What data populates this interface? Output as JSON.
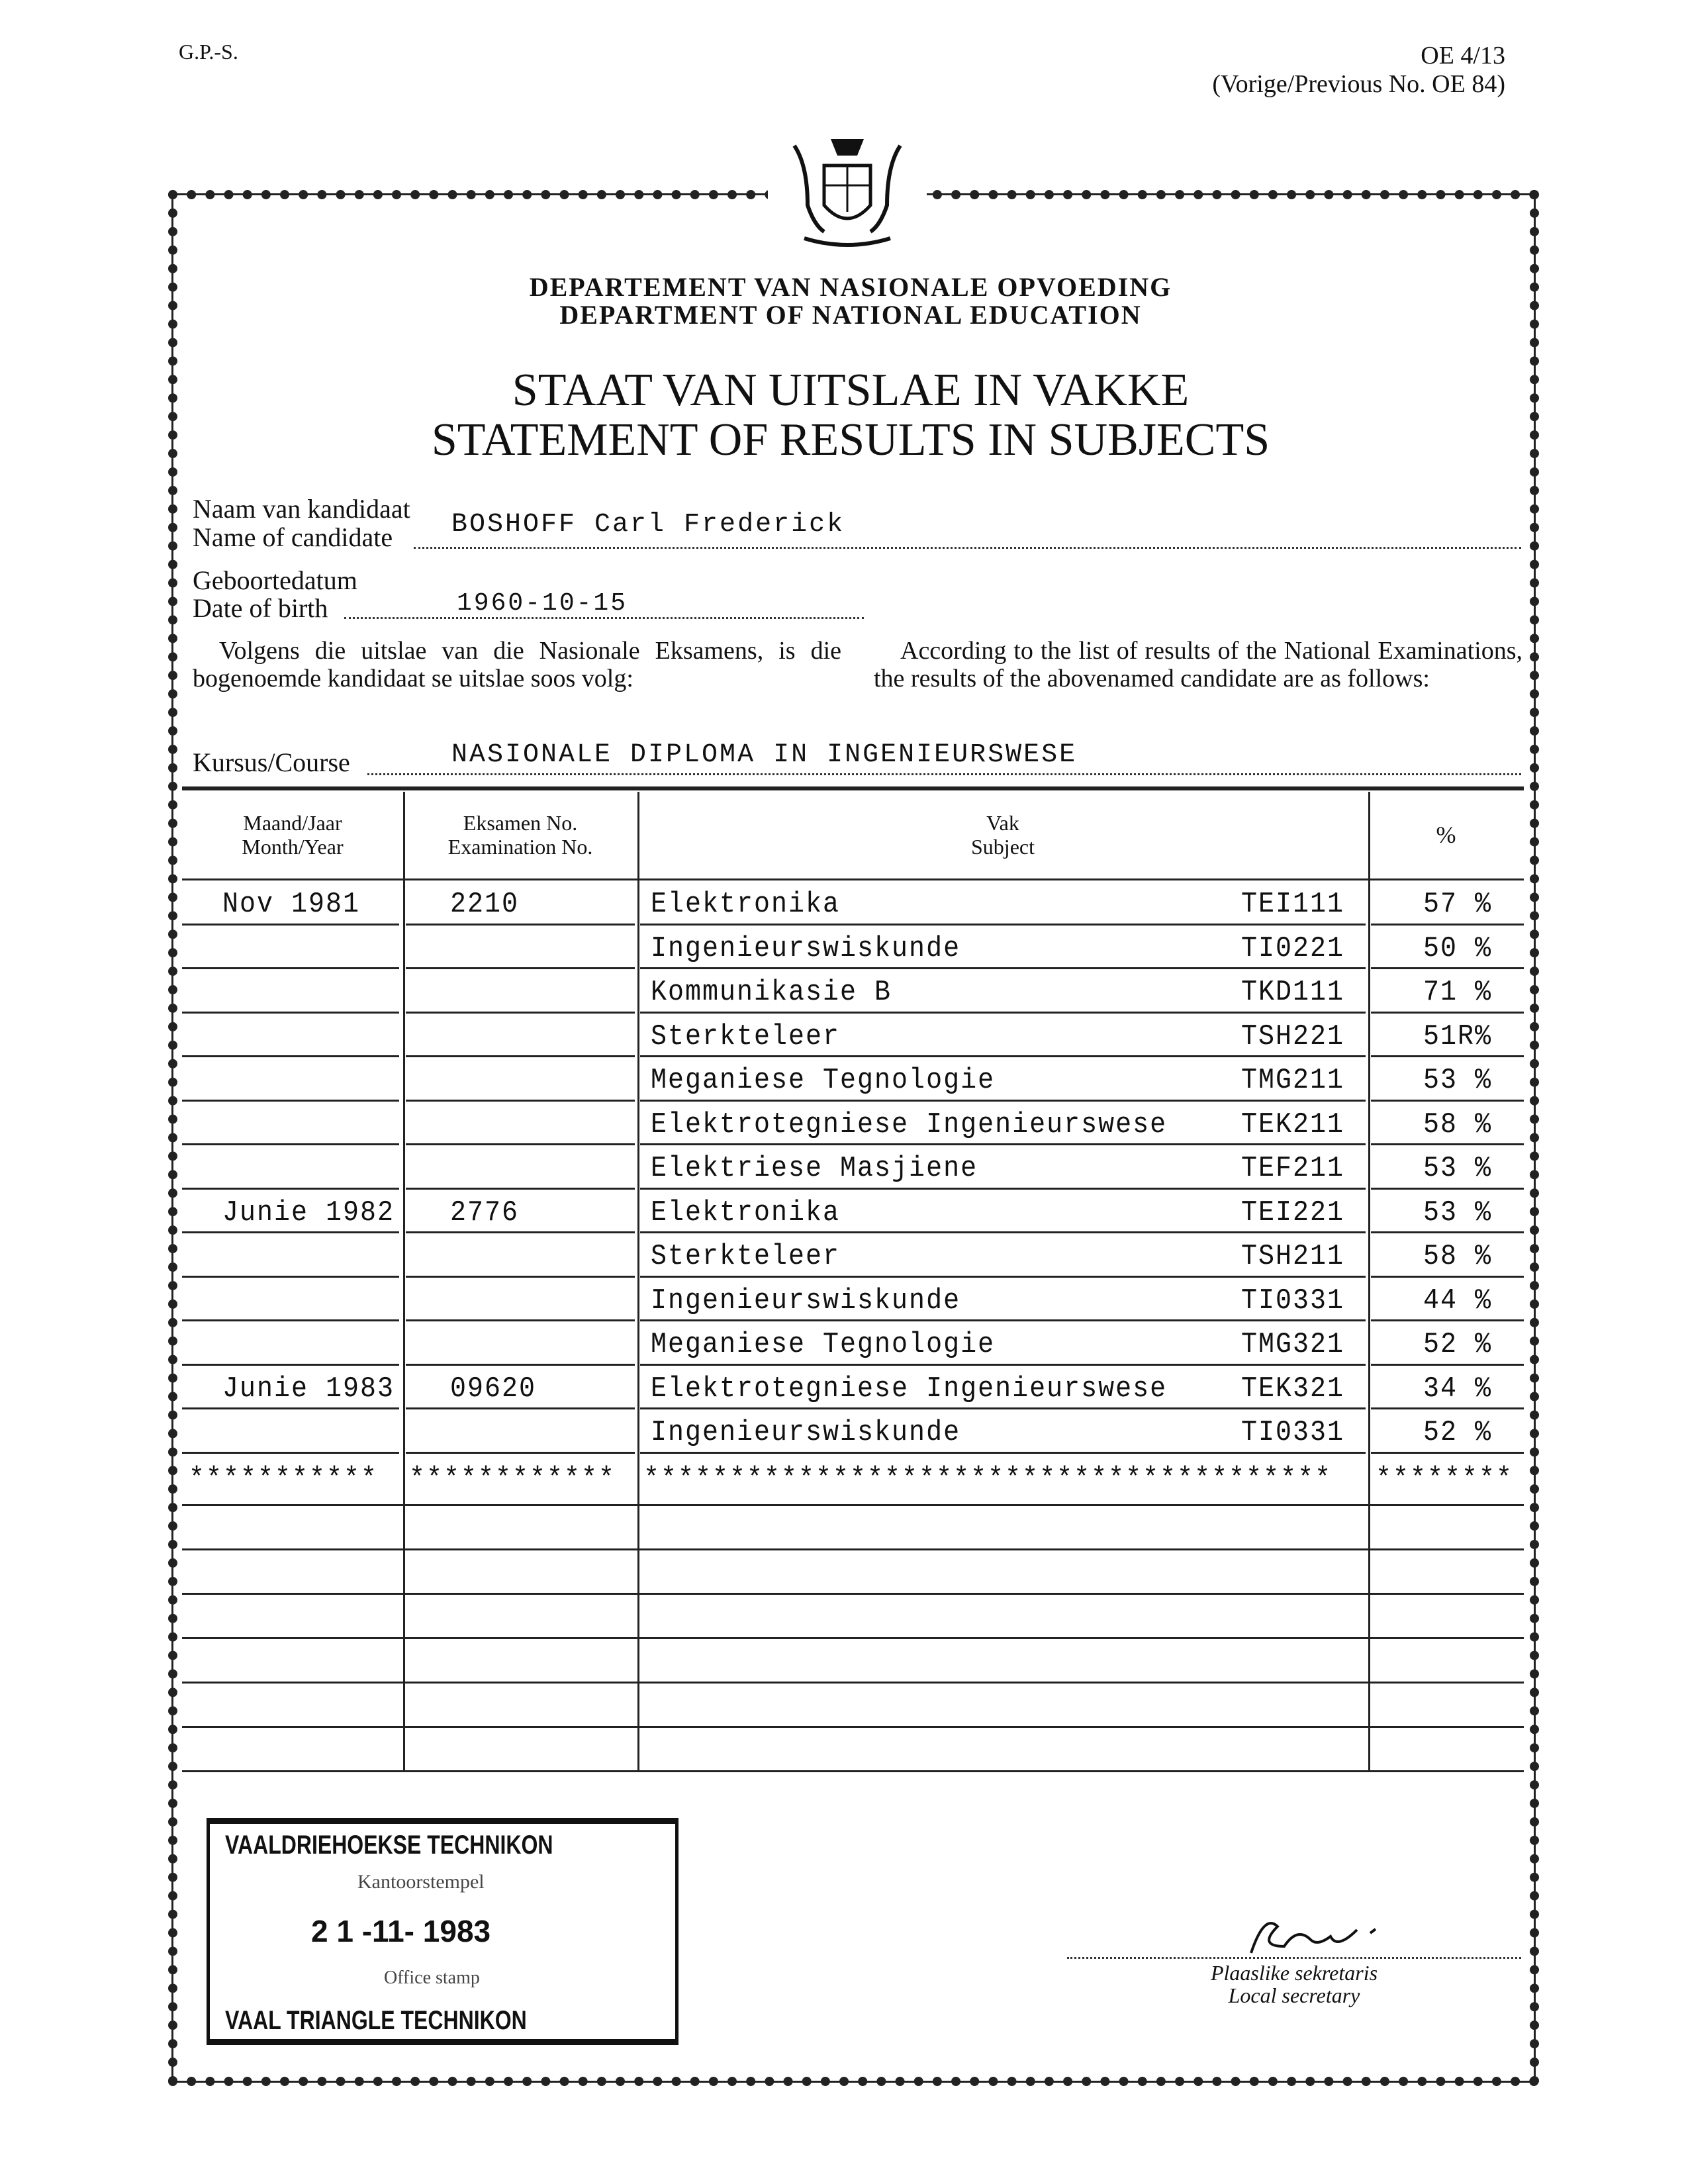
{
  "form": {
    "code_left": "G.P.-S.",
    "code_right": "OE 4/13",
    "previous": "(Vorige/Previous No. OE 84)"
  },
  "header": {
    "dept_af": "DEPARTEMENT VAN NASIONALE OPVOEDING",
    "dept_en": "DEPARTMENT OF NATIONAL EDUCATION",
    "title_af": "STAAT VAN UITSLAE IN VAKKE",
    "title_en": "STATEMENT OF RESULTS IN SUBJECTS"
  },
  "candidate": {
    "name_label_af": "Naam van kandidaat",
    "name_label_en": "Name of candidate",
    "name": "BOSHOFF  Carl Frederick",
    "dob_label_af": "Geboortedatum",
    "dob_label_en": "Date of birth",
    "dob": "1960-10-15"
  },
  "intro": {
    "af": "Volgens die uitslae van die Nasionale Eksamens, is die bogenoemde kandidaat se uitslae soos volg:",
    "en": "According to the list of results of the National Examinations, the results of the abovenamed candidate are as follows:"
  },
  "course": {
    "label": "Kursus/Course",
    "value": "NASIONALE DIPLOMA IN INGENIEURSWESE"
  },
  "table": {
    "headers": {
      "month_af": "Maand/Jaar",
      "month_en": "Month/Year",
      "exam_af": "Eksamen No.",
      "exam_en": "Examination No.",
      "subject_af": "Vak",
      "subject_en": "Subject",
      "percent": "%"
    },
    "rows": [
      {
        "month": "Nov 1981",
        "exam": "2210",
        "subject": "Elektronika",
        "code": "TEI111",
        "percent": "57 %"
      },
      {
        "month": "",
        "exam": "",
        "subject": "Ingenieurswiskunde",
        "code": "TI0221",
        "percent": "50 %"
      },
      {
        "month": "",
        "exam": "",
        "subject": "Kommunikasie  B",
        "code": "TKD111",
        "percent": "71 %"
      },
      {
        "month": "",
        "exam": "",
        "subject": "Sterkteleer",
        "code": "TSH221",
        "percent": "51R%"
      },
      {
        "month": "",
        "exam": "",
        "subject": "Meganiese Tegnologie",
        "code": "TMG211",
        "percent": "53 %"
      },
      {
        "month": "",
        "exam": "",
        "subject": "Elektrotegniese Ingenieurswese",
        "code": "TEK211",
        "percent": "58 %"
      },
      {
        "month": "",
        "exam": "",
        "subject": "Elektriese Masjiene",
        "code": "TEF211",
        "percent": "53 %"
      },
      {
        "month": "Junie 1982",
        "exam": "2776",
        "subject": "Elektronika",
        "code": "TEI221",
        "percent": "53 %"
      },
      {
        "month": "",
        "exam": "",
        "subject": "Sterkteleer",
        "code": "TSH211",
        "percent": "58 %"
      },
      {
        "month": "",
        "exam": "",
        "subject": "Ingenieurswiskunde",
        "code": "TI0331",
        "percent": "44 %"
      },
      {
        "month": "",
        "exam": "",
        "subject": "Meganiese Tegnologie",
        "code": "TMG321",
        "percent": "52 %"
      },
      {
        "month": "Junie 1983",
        "exam": "09620",
        "subject": "Elektrotegniese Ingenieurswese",
        "code": "TEK321",
        "percent": "34 %"
      },
      {
        "month": "",
        "exam": "",
        "subject": "Ingenieurswiskunde",
        "code": "TI0331",
        "percent": "52 %"
      }
    ],
    "terminator": "**********"
  },
  "stamp": {
    "line1": "VAALDRIEHOEKSE TECHNIKON",
    "label_af": "Kantoorstempel",
    "date": "2 1 -11- 1983",
    "line2": "VAAL TRIANGLE TECHNIKON",
    "label_en": "Office stamp"
  },
  "signature": {
    "label_af": "Plaaslike sekretaris",
    "label_en": "Local secretary"
  }
}
